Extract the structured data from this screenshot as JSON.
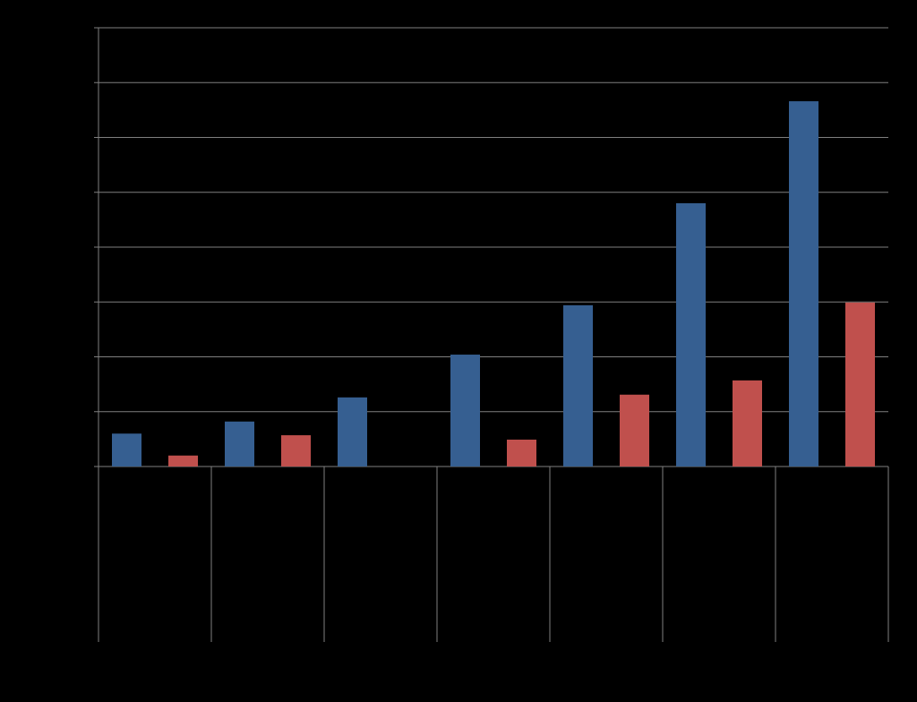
{
  "chart_data": {
    "type": "bar",
    "categories": [
      null,
      null,
      null,
      null,
      null,
      null,
      null
    ],
    "series": [
      {
        "color": "#365f91",
        "values": [
          0.6,
          0.82,
          1.26,
          2.04,
          2.94,
          4.8,
          6.66
        ]
      },
      {
        "color": "#c0504d",
        "values": [
          0.2,
          0.57,
          null,
          0.49,
          1.31,
          1.57,
          2.99
        ]
      }
    ],
    "ylim": [
      0,
      8
    ],
    "yticks": [
      0,
      1,
      2,
      3,
      4,
      5,
      6,
      7,
      8
    ],
    "grid": true
  }
}
